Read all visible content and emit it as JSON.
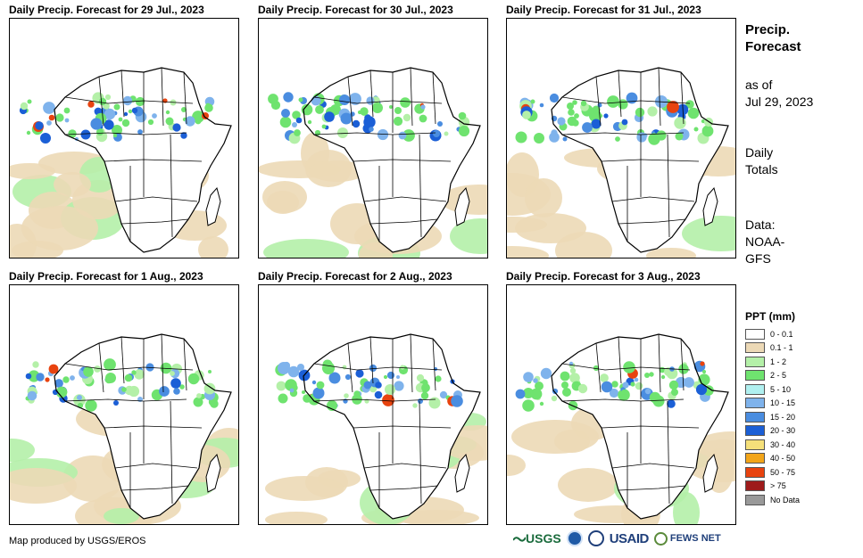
{
  "panels": [
    {
      "title": "Daily Precip. Forecast for 29 Jul., 2023"
    },
    {
      "title": "Daily Precip. Forecast for 30 Jul., 2023"
    },
    {
      "title": "Daily Precip. Forecast for 31 Jul., 2023"
    },
    {
      "title": "Daily Precip. Forecast for 1 Aug., 2023"
    },
    {
      "title": "Daily Precip. Forecast for 2 Aug., 2023"
    },
    {
      "title": "Daily Precip. Forecast for 3 Aug., 2023"
    }
  ],
  "side": {
    "title_line1": "Precip.",
    "title_line2": "Forecast",
    "asof_line1": "as of",
    "asof_line2": "Jul 29, 2023",
    "daily_line1": "Daily",
    "daily_line2": "Totals",
    "data_line1": "Data:",
    "data_line2": "NOAA-",
    "data_line3": "GFS"
  },
  "legend": {
    "title": "PPT (mm)",
    "items": [
      {
        "label": "0 - 0.1",
        "color": "#ffffff"
      },
      {
        "label": "0.1 - 1",
        "color": "#ecd9b6"
      },
      {
        "label": "1 - 2",
        "color": "#b4f0a8"
      },
      {
        "label": "2 - 5",
        "color": "#6fe36f"
      },
      {
        "label": "5 - 10",
        "color": "#b0f0f0"
      },
      {
        "label": "10 - 15",
        "color": "#7fb3ec"
      },
      {
        "label": "15 - 20",
        "color": "#4a8de0"
      },
      {
        "label": "20 - 30",
        "color": "#1b5fd6"
      },
      {
        "label": "30 - 40",
        "color": "#f5e07a"
      },
      {
        "label": "40 - 50",
        "color": "#f2a51a"
      },
      {
        "label": "50 - 75",
        "color": "#e8430f"
      },
      {
        "label": "> 75",
        "color": "#9e1b1b"
      },
      {
        "label": "No Data",
        "color": "#999999"
      }
    ]
  },
  "footer": {
    "credit": "Map produced by USGS/EROS"
  },
  "logos": {
    "usgs": "USGS",
    "usaid": "USAID",
    "fews": "FEWS NET"
  }
}
